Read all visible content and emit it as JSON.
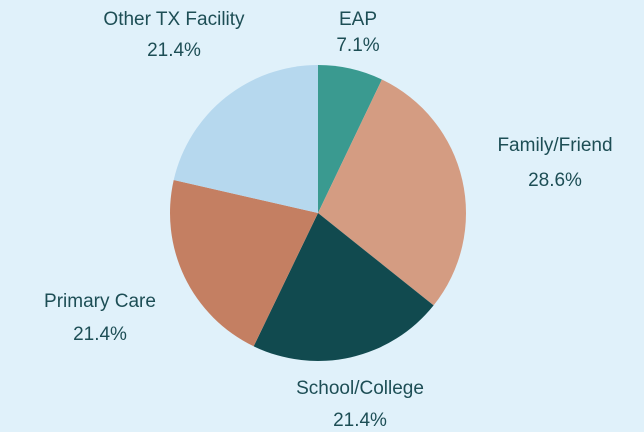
{
  "chart_data": {
    "type": "pie",
    "categories": [
      "EAP",
      "Family/Friend",
      "School/College",
      "Primary Care",
      "Other TX Facility"
    ],
    "values": [
      7.1,
      28.6,
      21.4,
      21.4,
      21.4
    ],
    "value_labels": [
      "7.1%",
      "28.6%",
      "21.4%",
      "21.4%",
      "21.4%"
    ],
    "colors": [
      "#3a9a90",
      "#d49c82",
      "#114a4f",
      "#c47f62",
      "#b6d8ee"
    ]
  }
}
